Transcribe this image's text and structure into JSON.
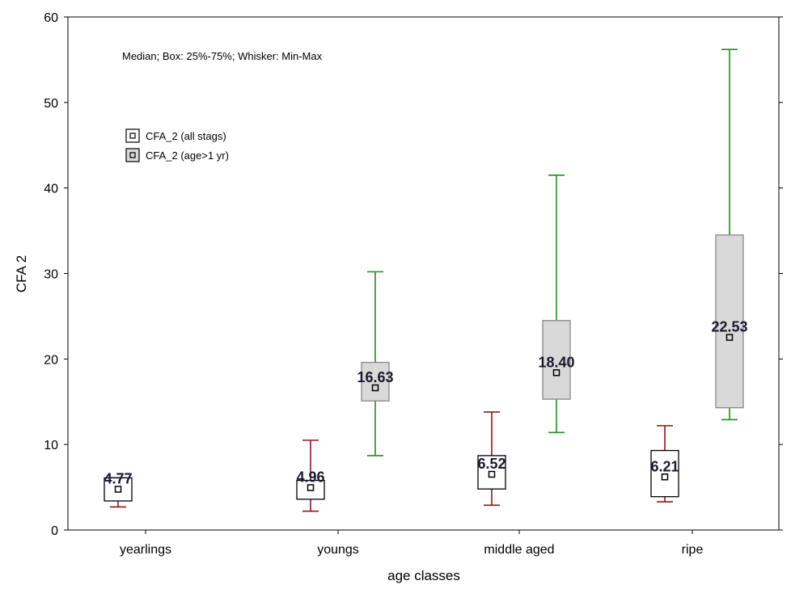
{
  "chart_data": {
    "type": "boxplot",
    "note": "Median; Box: 25%-75%; Whisker: Min-Max",
    "xlabel": "age classes",
    "ylabel": "CFA 2",
    "ylim": [
      0,
      60
    ],
    "yticks": [
      "0",
      "10",
      "20",
      "30",
      "40",
      "50",
      "60"
    ],
    "categories": [
      "yearlings",
      "youngs",
      "middle aged",
      "ripe"
    ],
    "legend_position": "top-left",
    "grid": false,
    "series": [
      {
        "name": "CFA_2 (all stags)",
        "box_color": "#ffffff",
        "whisker_color": "#8b1a1a",
        "boxes": [
          {
            "category": "yearlings",
            "min": 2.7,
            "q1": 3.4,
            "median": 4.77,
            "q3": 6.1,
            "max": 6.1,
            "label": "4.77"
          },
          {
            "category": "youngs",
            "min": 2.2,
            "q1": 3.6,
            "median": 4.96,
            "q3": 5.8,
            "max": 10.5,
            "label": "4.96"
          },
          {
            "category": "middle aged",
            "min": 2.9,
            "q1": 4.8,
            "median": 6.52,
            "q3": 8.7,
            "max": 13.8,
            "label": "6.52"
          },
          {
            "category": "ripe",
            "min": 3.3,
            "q1": 3.9,
            "median": 6.21,
            "q3": 9.3,
            "max": 12.2,
            "label": "6.21"
          }
        ]
      },
      {
        "name": "CFA_2 (age>1 yr)",
        "box_color": "#d9d9d9",
        "whisker_color": "#1f8f1f",
        "boxes": [
          {
            "category": "youngs",
            "min": 8.7,
            "q1": 15.1,
            "median": 16.63,
            "q3": 19.6,
            "max": 30.2,
            "label": "16.63"
          },
          {
            "category": "middle aged",
            "min": 11.4,
            "q1": 15.3,
            "median": 18.4,
            "q3": 24.5,
            "max": 41.5,
            "label": "18.40"
          },
          {
            "category": "ripe",
            "min": 12.9,
            "q1": 14.3,
            "median": 22.53,
            "q3": 34.5,
            "max": 56.2,
            "label": "22.53"
          }
        ]
      }
    ]
  }
}
